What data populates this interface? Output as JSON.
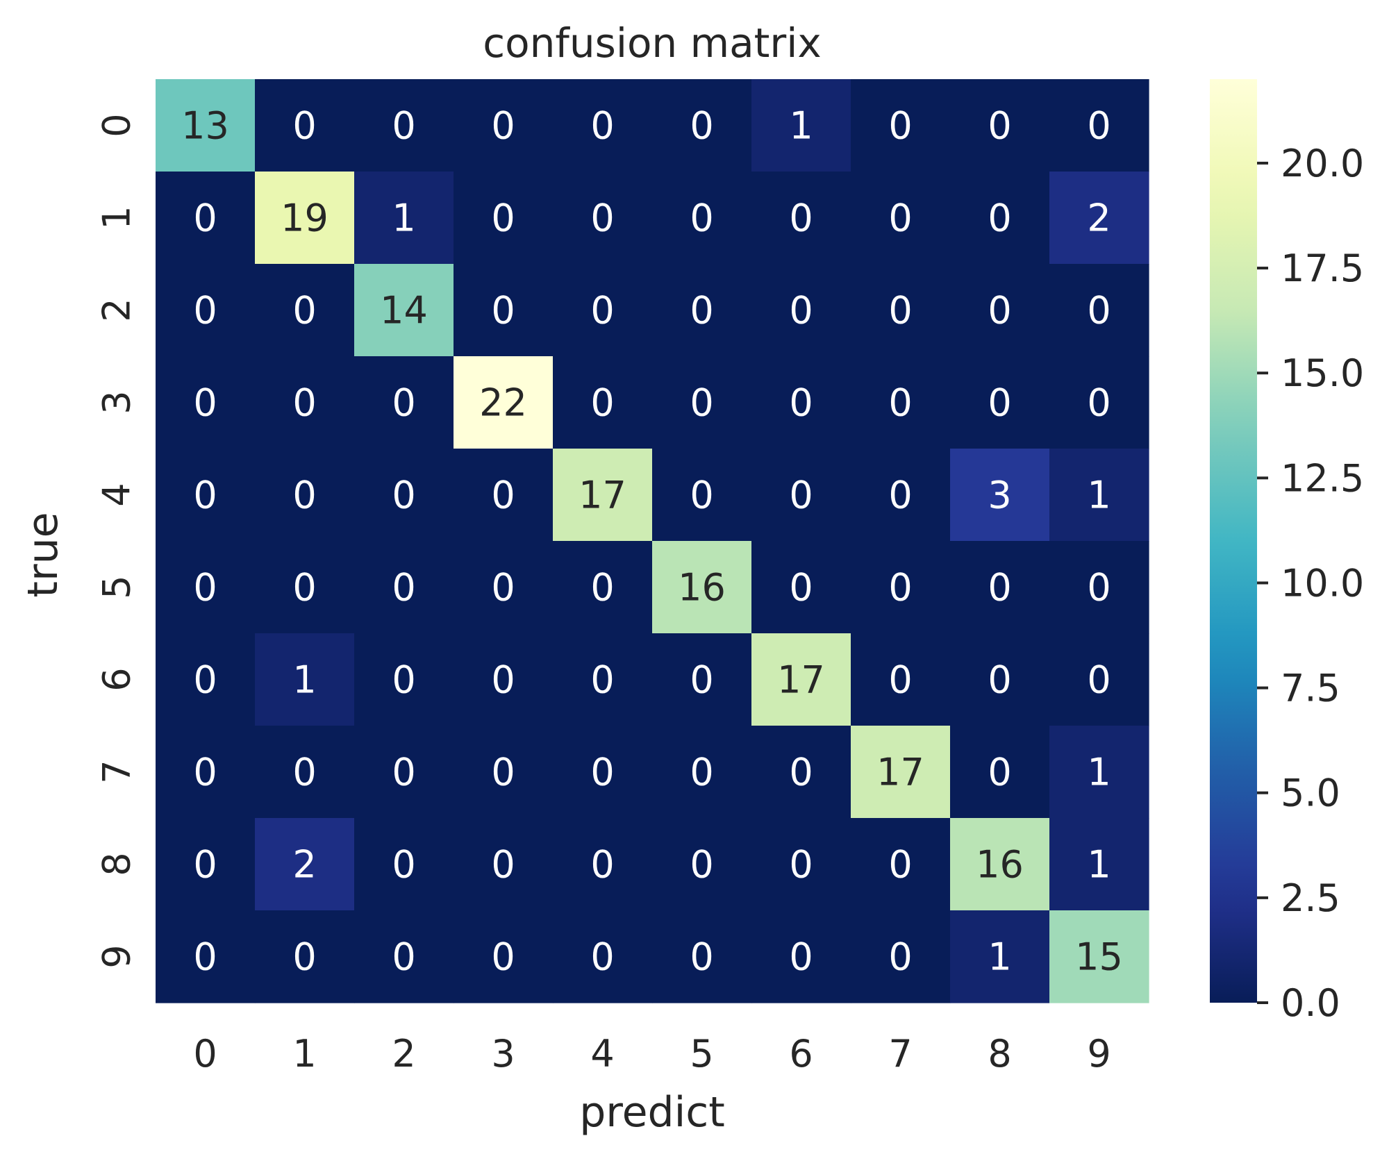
{
  "chart_data": {
    "type": "heatmap",
    "title": "confusion matrix",
    "xlabel": "predict",
    "ylabel": "true",
    "x_categories": [
      "0",
      "1",
      "2",
      "3",
      "4",
      "5",
      "6",
      "7",
      "8",
      "9"
    ],
    "y_categories": [
      "0",
      "1",
      "2",
      "3",
      "4",
      "5",
      "6",
      "7",
      "8",
      "9"
    ],
    "matrix": [
      [
        13,
        0,
        0,
        0,
        0,
        0,
        1,
        0,
        0,
        0
      ],
      [
        0,
        19,
        1,
        0,
        0,
        0,
        0,
        0,
        0,
        2
      ],
      [
        0,
        0,
        14,
        0,
        0,
        0,
        0,
        0,
        0,
        0
      ],
      [
        0,
        0,
        0,
        22,
        0,
        0,
        0,
        0,
        0,
        0
      ],
      [
        0,
        0,
        0,
        0,
        17,
        0,
        0,
        0,
        3,
        1
      ],
      [
        0,
        0,
        0,
        0,
        0,
        16,
        0,
        0,
        0,
        0
      ],
      [
        0,
        1,
        0,
        0,
        0,
        0,
        17,
        0,
        0,
        0
      ],
      [
        0,
        0,
        0,
        0,
        0,
        0,
        0,
        17,
        0,
        1
      ],
      [
        0,
        2,
        0,
        0,
        0,
        0,
        0,
        0,
        16,
        1
      ],
      [
        0,
        0,
        0,
        0,
        0,
        0,
        0,
        0,
        1,
        15
      ]
    ],
    "colormap": "YlGnBu",
    "color_range": [
      0,
      22
    ],
    "colorbar": {
      "ticks": [
        0,
        2.5,
        5,
        7.5,
        10,
        12.5,
        15,
        17.5,
        20
      ],
      "tick_labels": [
        "0.0",
        "2.5",
        "5.0",
        "7.5",
        "10.0",
        "12.5",
        "15.0",
        "17.5",
        "20.0"
      ],
      "placement": "right"
    },
    "annotations": true,
    "grid": false
  }
}
